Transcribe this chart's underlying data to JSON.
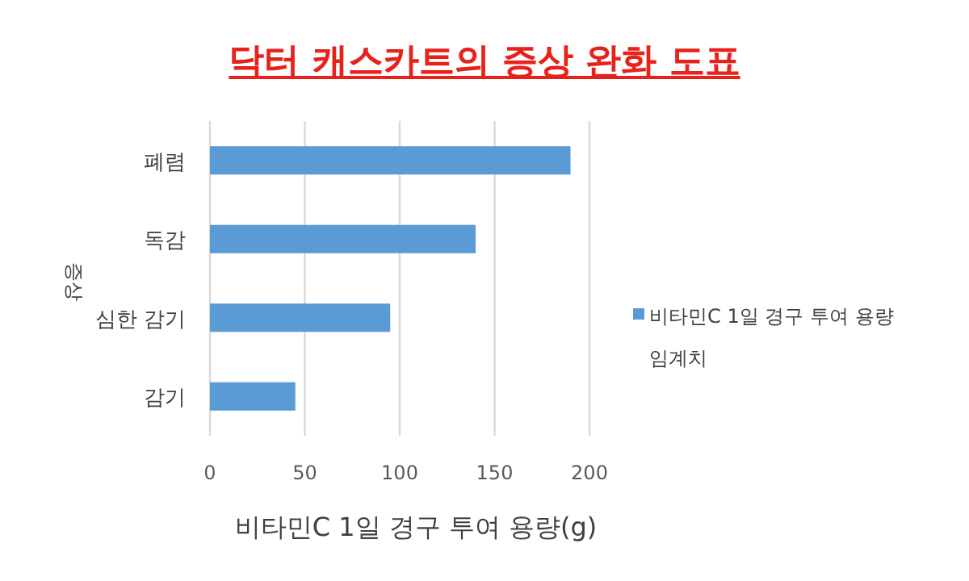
{
  "chart_data": {
    "type": "bar",
    "orientation": "horizontal",
    "title": "닥터 캐스카트의 증상 완화 도표",
    "xlabel": "비타민C 1일 경구 투여 용량(g)",
    "ylabel": "증상",
    "categories": [
      "폐렴",
      "독감",
      "심한 감기",
      "감기"
    ],
    "series": [
      {
        "name": "비타민C 1일 경구 투여 용량 임계치",
        "color": "#5b9bd5",
        "values": [
          190,
          140,
          95,
          45
        ]
      }
    ],
    "xlim": [
      0,
      200
    ],
    "xticks": [
      0,
      50,
      100,
      150,
      200
    ],
    "grid": "x",
    "legend": "right"
  }
}
